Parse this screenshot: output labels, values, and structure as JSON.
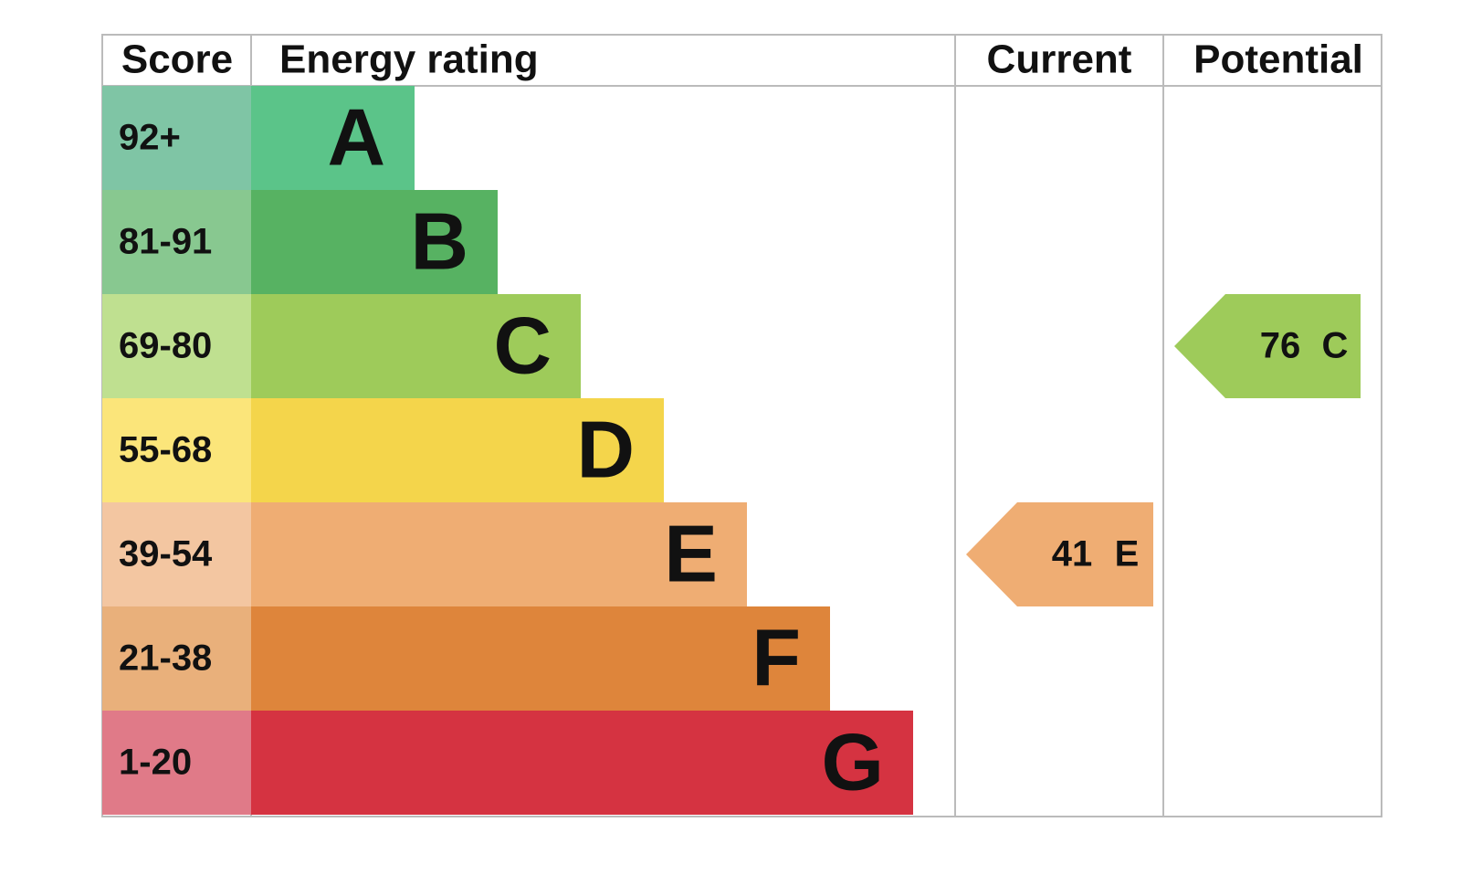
{
  "header": {
    "score": "Score",
    "energy_rating": "Energy rating",
    "current": "Current",
    "potential": "Potential"
  },
  "rows": [
    {
      "score": "92+",
      "band": "A"
    },
    {
      "score": "81-91",
      "band": "B"
    },
    {
      "score": "69-80",
      "band": "C"
    },
    {
      "score": "55-68",
      "band": "D"
    },
    {
      "score": "39-54",
      "band": "E"
    },
    {
      "score": "21-38",
      "band": "F"
    },
    {
      "score": "1-20",
      "band": "G"
    }
  ],
  "current": {
    "value": 41,
    "band": "E"
  },
  "potential": {
    "value": 76,
    "band": "C"
  }
}
